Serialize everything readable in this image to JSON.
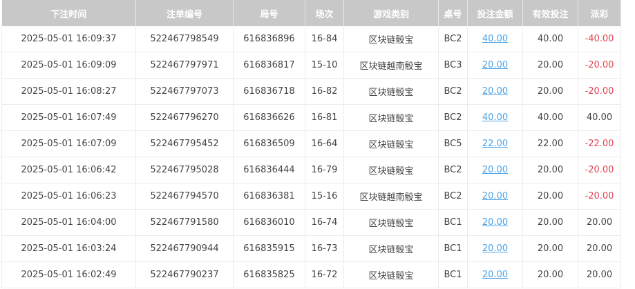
{
  "table": {
    "headers": [
      "下注时间",
      "注单编号",
      "局号",
      "场次",
      "游戏类别",
      "桌号",
      "投注金额",
      "有效投注",
      "派彩"
    ],
    "rows": [
      [
        "2025-05-01 16:09:37",
        "522467798549",
        "616836896",
        "16-84",
        "区块链骰宝",
        "BC2",
        "40.00",
        "40.00",
        "-40.00"
      ],
      [
        "2025-05-01 16:09:09",
        "522467797971",
        "616836817",
        "15-10",
        "区块链越南骰宝",
        "BC3",
        "20.00",
        "20.00",
        "-20.00"
      ],
      [
        "2025-05-01 16:08:27",
        "522467797073",
        "616836718",
        "16-82",
        "区块链骰宝",
        "BC2",
        "20.00",
        "20.00",
        "-20.00"
      ],
      [
        "2025-05-01 16:07:49",
        "522467796270",
        "616836626",
        "16-81",
        "区块链骰宝",
        "BC2",
        "40.00",
        "40.00",
        "40.00"
      ],
      [
        "2025-05-01 16:07:09",
        "522467795452",
        "616836509",
        "16-64",
        "区块链骰宝",
        "BC5",
        "22.00",
        "22.00",
        "-22.00"
      ],
      [
        "2025-05-01 16:06:42",
        "522467795028",
        "616836444",
        "16-79",
        "区块链骰宝",
        "BC2",
        "20.00",
        "20.00",
        "-20.00"
      ],
      [
        "2025-05-01 16:06:23",
        "522467794570",
        "616836381",
        "15-16",
        "区块链越南骰宝",
        "BC2",
        "20.00",
        "20.00",
        "-20.00"
      ],
      [
        "2025-05-01 16:04:00",
        "522467791580",
        "616836010",
        "16-74",
        "区块链骰宝",
        "BC1",
        "20.00",
        "20.00",
        "20.00"
      ],
      [
        "2025-05-01 16:03:24",
        "522467790944",
        "616835915",
        "16-73",
        "区块链骰宝",
        "BC1",
        "20.00",
        "20.00",
        "20.00"
      ],
      [
        "2025-05-01 16:02:49",
        "522467790237",
        "616835825",
        "16-72",
        "区块链骰宝",
        "BC1",
        "20.00",
        "20.00",
        "20.00"
      ]
    ]
  },
  "colors": {
    "header_bg": "#c8c8c8",
    "link": "#4aa3e8",
    "negative": "#e0404f"
  }
}
